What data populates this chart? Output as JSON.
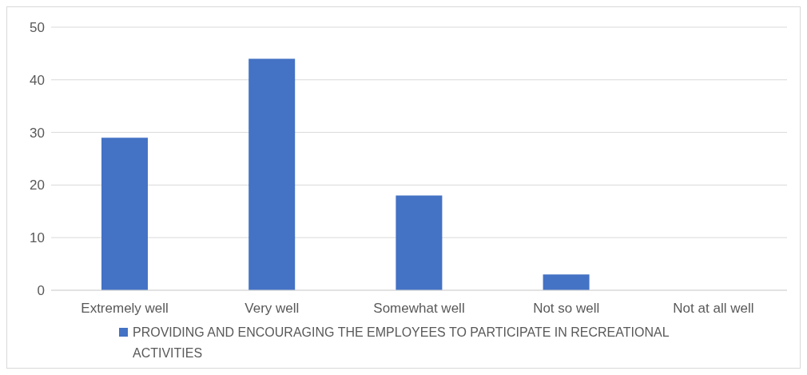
{
  "chart_data": {
    "type": "bar",
    "categories": [
      "Extremely well",
      "Very well",
      "Somewhat well",
      "Not so well",
      "Not at all well"
    ],
    "series": [
      {
        "name": "PROVIDING AND ENCOURAGING THE EMPLOYEES TO PARTICIPATE IN RECREATIONAL ACTIVITIES",
        "color": "#4472c4",
        "values": [
          29,
          44,
          18,
          3,
          0
        ]
      }
    ],
    "ylim": [
      0,
      50
    ],
    "yticks": [
      0,
      10,
      20,
      30,
      40,
      50
    ],
    "grid": "y",
    "legend": "bottom"
  }
}
